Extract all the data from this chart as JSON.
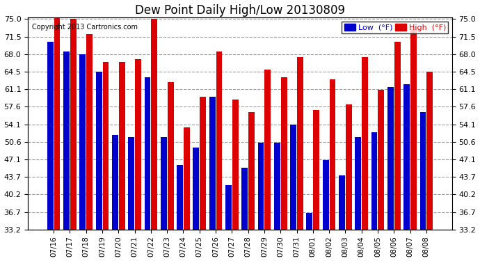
{
  "title": "Dew Point Daily High/Low 20130809",
  "copyright": "Copyright 2013 Cartronics.com",
  "dates": [
    "07/16",
    "07/17",
    "07/18",
    "07/19",
    "07/20",
    "07/21",
    "07/22",
    "07/23",
    "07/24",
    "07/25",
    "07/26",
    "07/27",
    "07/28",
    "07/29",
    "07/30",
    "07/31",
    "08/01",
    "08/02",
    "08/03",
    "08/04",
    "08/05",
    "08/06",
    "08/07",
    "08/08"
  ],
  "low_values": [
    70.5,
    68.5,
    68.0,
    64.5,
    52.0,
    51.5,
    63.5,
    51.5,
    46.0,
    49.5,
    59.5,
    42.0,
    45.5,
    50.5,
    50.5,
    54.0,
    36.5,
    47.0,
    44.0,
    51.5,
    52.5,
    61.5,
    62.0,
    56.5
  ],
  "high_values": [
    75.5,
    75.0,
    72.0,
    66.5,
    66.5,
    67.0,
    75.0,
    62.5,
    53.5,
    59.5,
    68.5,
    59.0,
    56.5,
    65.0,
    63.5,
    67.5,
    57.0,
    63.0,
    58.0,
    67.5,
    61.0,
    70.5,
    73.0,
    64.5
  ],
  "low_color": "#0000cc",
  "high_color": "#dd0000",
  "bg_color": "#ffffff",
  "grid_color": "#999999",
  "ylim_min": 33.2,
  "ylim_max": 75.0,
  "yticks": [
    33.2,
    36.7,
    40.2,
    43.7,
    47.1,
    50.6,
    54.1,
    57.6,
    61.1,
    64.5,
    68.0,
    71.5,
    75.0
  ],
  "bar_width": 0.38,
  "bar_gap": 0.04
}
